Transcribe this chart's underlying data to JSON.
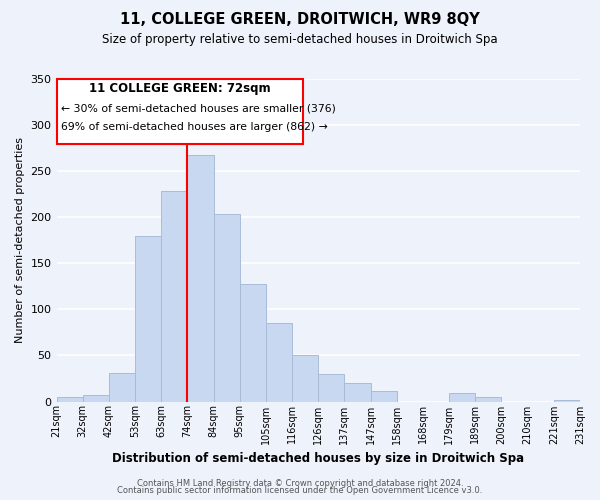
{
  "title": "11, COLLEGE GREEN, DROITWICH, WR9 8QY",
  "subtitle": "Size of property relative to semi-detached houses in Droitwich Spa",
  "xlabel": "Distribution of semi-detached houses by size in Droitwich Spa",
  "ylabel": "Number of semi-detached properties",
  "bar_color": "#c8d8f0",
  "bar_edge_color": "#a8bcd8",
  "background_color": "#eef2fb",
  "grid_color": "#ffffff",
  "bin_labels": [
    "21sqm",
    "32sqm",
    "42sqm",
    "53sqm",
    "63sqm",
    "74sqm",
    "84sqm",
    "95sqm",
    "105sqm",
    "116sqm",
    "126sqm",
    "137sqm",
    "147sqm",
    "158sqm",
    "168sqm",
    "179sqm",
    "189sqm",
    "200sqm",
    "210sqm",
    "221sqm",
    "231sqm"
  ],
  "counts": [
    5,
    7,
    31,
    180,
    228,
    267,
    204,
    127,
    85,
    50,
    30,
    20,
    11,
    0,
    0,
    9,
    5,
    0,
    0,
    2
  ],
  "red_line_x": 5.0,
  "ylim": [
    0,
    350
  ],
  "yticks": [
    0,
    50,
    100,
    150,
    200,
    250,
    300,
    350
  ],
  "annotation_title": "11 COLLEGE GREEN: 72sqm",
  "annotation_line1": "← 30% of semi-detached houses are smaller (376)",
  "annotation_line2": "69% of semi-detached houses are larger (862) →",
  "footer1": "Contains HM Land Registry data © Crown copyright and database right 2024.",
  "footer2": "Contains public sector information licensed under the Open Government Licence v3.0."
}
